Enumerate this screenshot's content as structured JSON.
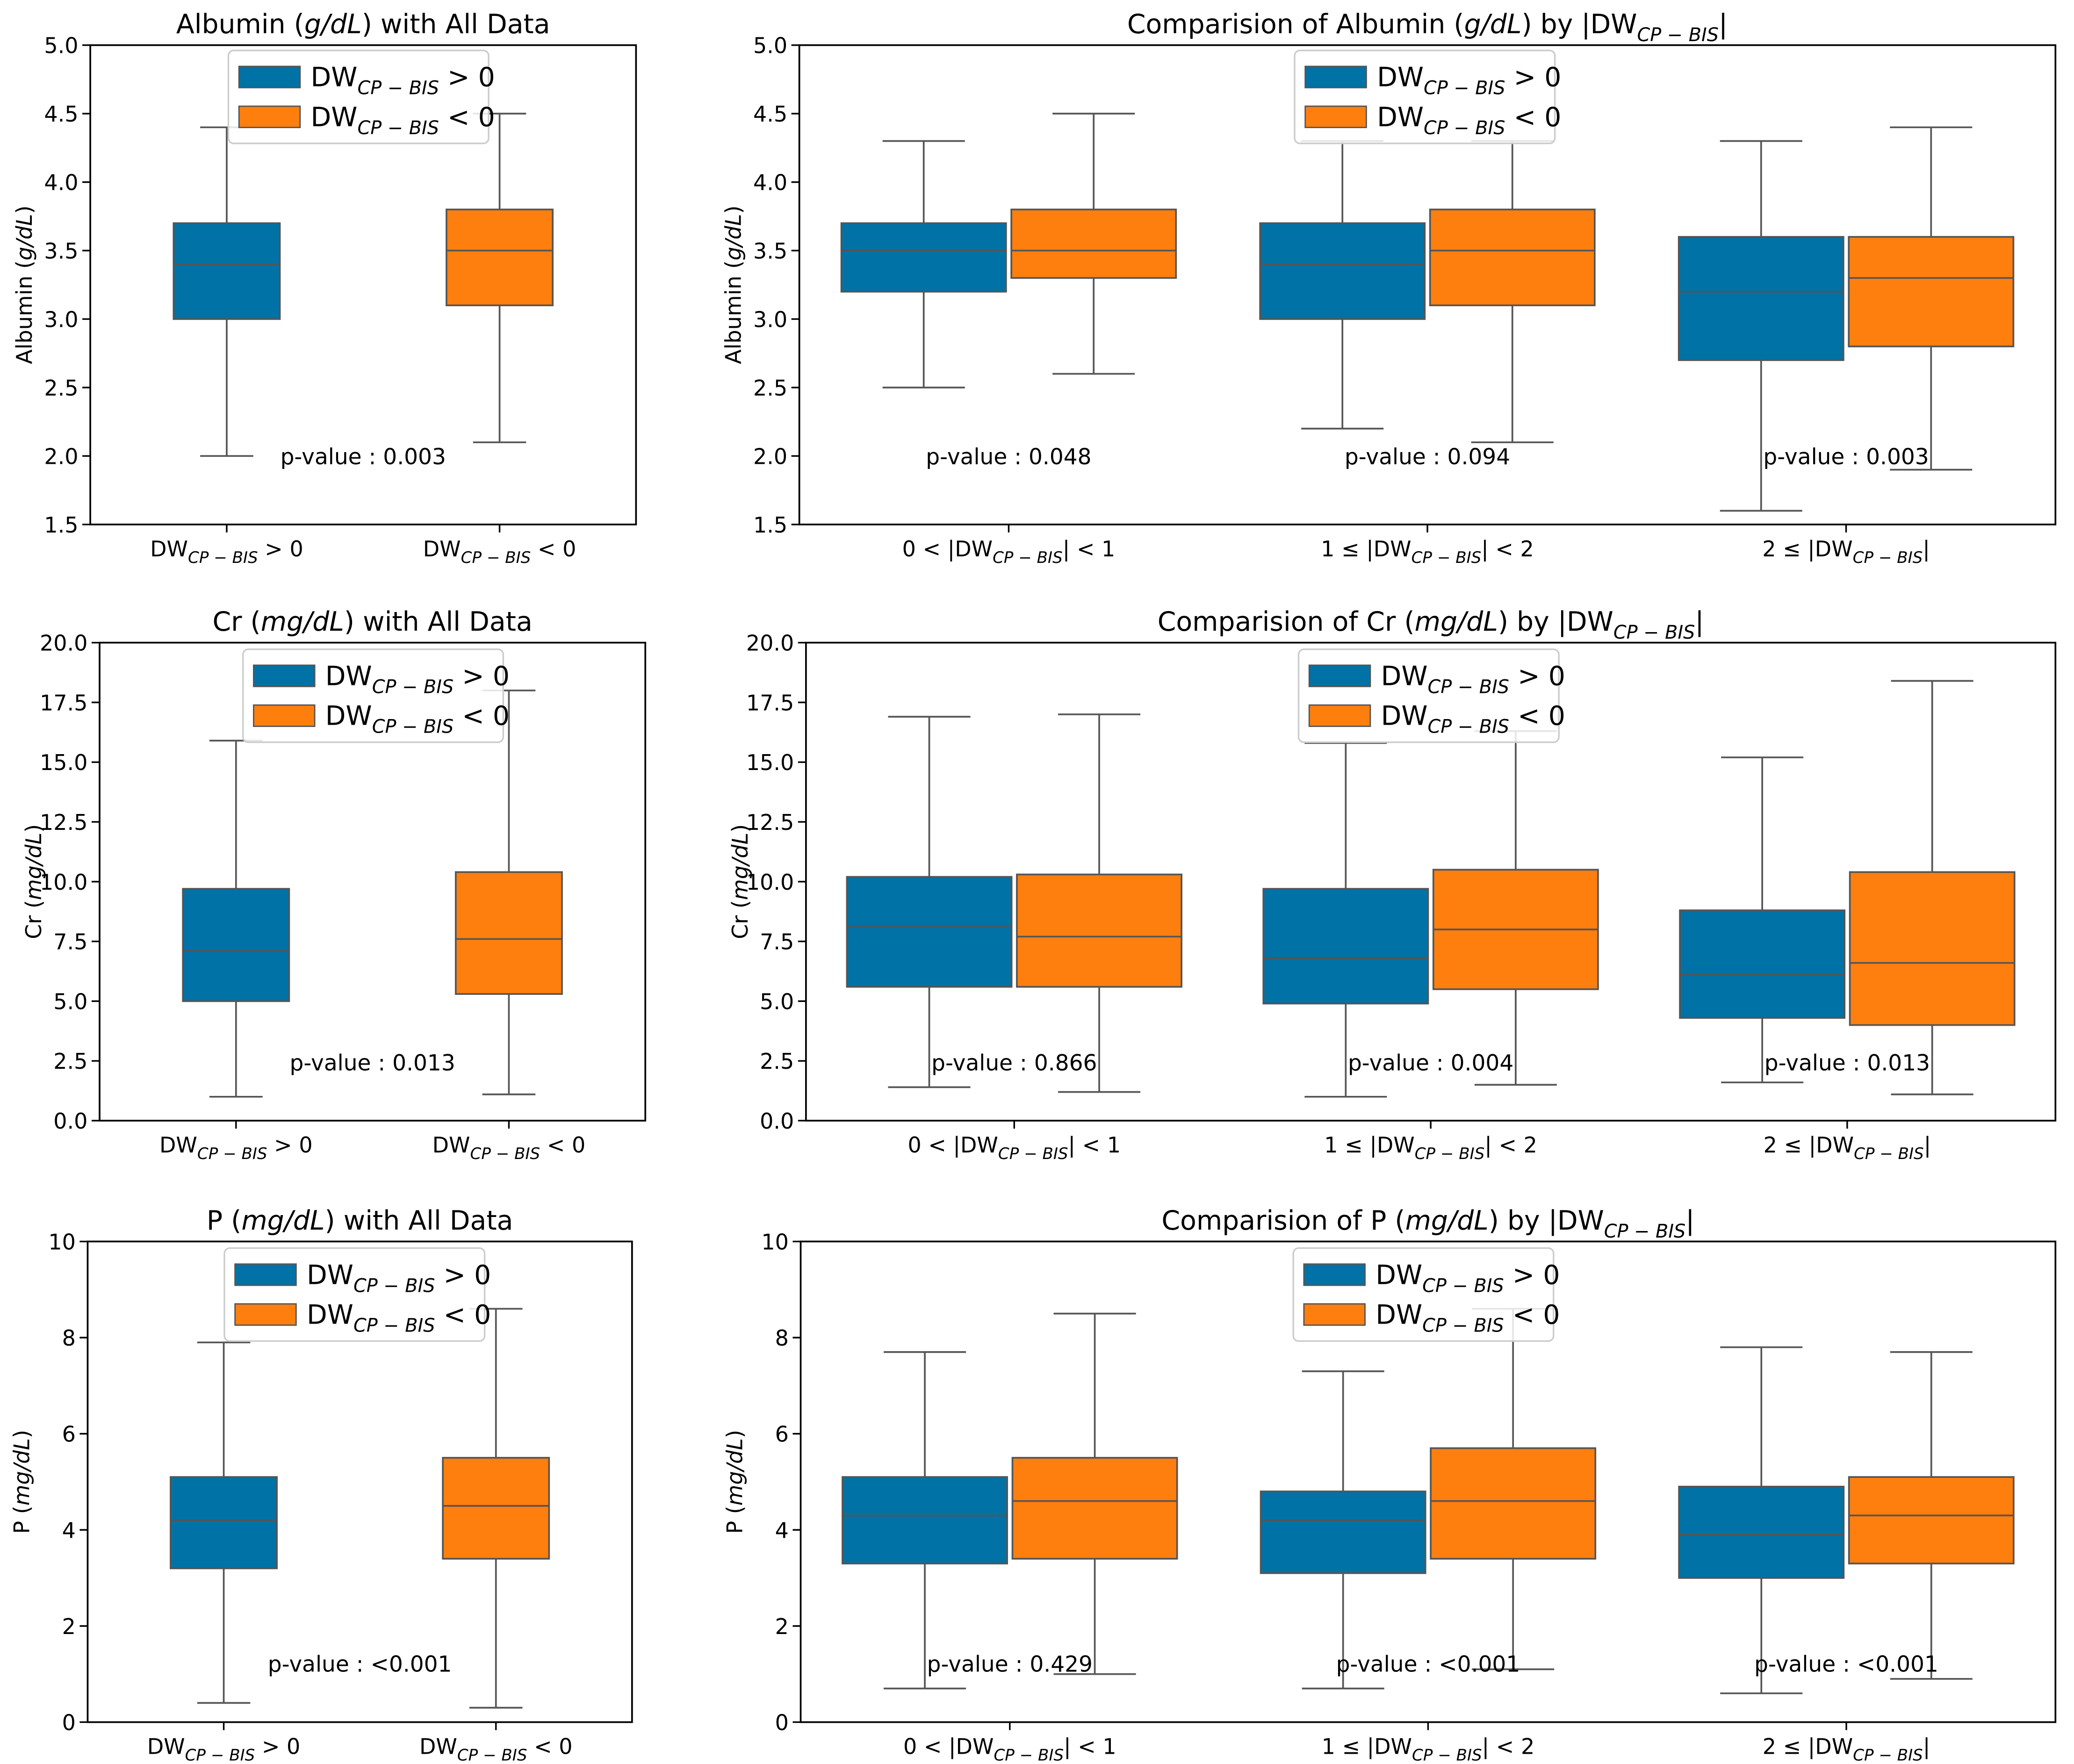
{
  "colors": {
    "positive": "#0072a6",
    "negative": "#ff7f0e",
    "line": "#555555"
  },
  "legend": {
    "positive": {
      "base": "DW",
      "sub": "CP − BIS",
      "rel": " > 0"
    },
    "negative": {
      "base": "DW",
      "sub": "CP − BIS",
      "rel": " < 0"
    }
  },
  "chart_data": [
    {
      "type": "box",
      "title": {
        "pre": "Albumin (",
        "italic": "g/dL",
        "post": ") with All Data"
      },
      "ylabel": {
        "pre": "Albumin (",
        "italic": "g/dL",
        "post": ")"
      },
      "ylim": [
        1.5,
        5.0
      ],
      "yticks": [
        "1.5",
        "2.0",
        "2.5",
        "3.0",
        "3.5",
        "4.0",
        "4.5",
        "5.0"
      ],
      "categories": [
        {
          "base": "DW",
          "sub": "CP − BIS",
          "post": " > 0"
        },
        {
          "base": "DW",
          "sub": "CP − BIS",
          "post": " < 0"
        }
      ],
      "groups": [
        {
          "boxes": [
            {
              "series": "positive",
              "min": 2.0,
              "q1": 3.0,
              "median": 3.4,
              "q3": 3.7,
              "max": 4.4
            }
          ]
        },
        {
          "boxes": [
            {
              "series": "negative",
              "min": 2.1,
              "q1": 3.1,
              "median": 3.5,
              "q3": 3.8,
              "max": 4.5
            }
          ]
        }
      ],
      "annotations": [
        {
          "text": "p-value : 0.003",
          "x": 0.5,
          "y": 1.94
        }
      ]
    },
    {
      "type": "box",
      "title": {
        "pre": "Comparision of Albumin (",
        "italic": "g/dL",
        "post": ") by |DW",
        "sub": "CP − BIS",
        "tail": "|"
      },
      "ylabel": {
        "pre": "Albumin (",
        "italic": "g/dL",
        "post": ")"
      },
      "ylim": [
        1.5,
        5.0
      ],
      "yticks": [
        "1.5",
        "2.0",
        "2.5",
        "3.0",
        "3.5",
        "4.0",
        "4.5",
        "5.0"
      ],
      "categories": [
        {
          "pre": "0 < |",
          "base": "DW",
          "sub": "CP − BIS",
          "post": "| < 1"
        },
        {
          "pre": "1 ≤ |",
          "base": "DW",
          "sub": "CP − BIS",
          "post": "| < 2"
        },
        {
          "pre": "2 ≤ |",
          "base": "DW",
          "sub": "CP − BIS",
          "post": "|"
        }
      ],
      "groups": [
        {
          "boxes": [
            {
              "series": "positive",
              "min": 2.5,
              "q1": 3.2,
              "median": 3.5,
              "q3": 3.7,
              "max": 4.3
            },
            {
              "series": "negative",
              "min": 2.6,
              "q1": 3.3,
              "median": 3.5,
              "q3": 3.8,
              "max": 4.5
            }
          ]
        },
        {
          "boxes": [
            {
              "series": "positive",
              "min": 2.2,
              "q1": 3.0,
              "median": 3.4,
              "q3": 3.7,
              "max": 4.3
            },
            {
              "series": "negative",
              "min": 2.1,
              "q1": 3.1,
              "median": 3.5,
              "q3": 3.8,
              "max": 4.3
            }
          ]
        },
        {
          "boxes": [
            {
              "series": "positive",
              "min": 1.6,
              "q1": 2.7,
              "median": 3.2,
              "q3": 3.6,
              "max": 4.3
            },
            {
              "series": "negative",
              "min": 1.9,
              "q1": 2.8,
              "median": 3.3,
              "q3": 3.6,
              "max": 4.4
            }
          ]
        }
      ],
      "annotations": [
        {
          "text": "p-value : 0.048",
          "x": 0.0,
          "y": 1.94
        },
        {
          "text": "p-value : 0.094",
          "x": 1.0,
          "y": 1.94
        },
        {
          "text": "p-value : 0.003",
          "x": 2.0,
          "y": 1.94
        }
      ]
    },
    {
      "type": "box",
      "title": {
        "pre": "Cr (",
        "italic": "mg/dL",
        "post": ") with All Data"
      },
      "ylabel": {
        "pre": "Cr (",
        "italic": "mg/dL",
        "post": ")"
      },
      "ylim": [
        0,
        20
      ],
      "yticks": [
        "0.0",
        "2.5",
        "5.0",
        "7.5",
        "10.0",
        "12.5",
        "15.0",
        "17.5",
        "20.0"
      ],
      "categories": [
        {
          "base": "DW",
          "sub": "CP − BIS",
          "post": " > 0"
        },
        {
          "base": "DW",
          "sub": "CP − BIS",
          "post": " < 0"
        }
      ],
      "groups": [
        {
          "boxes": [
            {
              "series": "positive",
              "min": 1.0,
              "q1": 5.0,
              "median": 7.1,
              "q3": 9.7,
              "max": 15.9
            }
          ]
        },
        {
          "boxes": [
            {
              "series": "negative",
              "min": 1.1,
              "q1": 5.3,
              "median": 7.6,
              "q3": 10.4,
              "max": 18.0
            }
          ]
        }
      ],
      "annotations": [
        {
          "text": "p-value : 0.013",
          "x": 0.5,
          "y": 2.1
        }
      ]
    },
    {
      "type": "box",
      "title": {
        "pre": "Comparision of Cr (",
        "italic": "mg/dL",
        "post": ") by |DW",
        "sub": "CP − BIS",
        "tail": "|"
      },
      "ylabel": {
        "pre": "Cr (",
        "italic": "mg/dL",
        "post": ")"
      },
      "ylim": [
        0,
        20
      ],
      "yticks": [
        "0.0",
        "2.5",
        "5.0",
        "7.5",
        "10.0",
        "12.5",
        "15.0",
        "17.5",
        "20.0"
      ],
      "categories": [
        {
          "pre": "0 < |",
          "base": "DW",
          "sub": "CP − BIS",
          "post": "| < 1"
        },
        {
          "pre": "1 ≤ |",
          "base": "DW",
          "sub": "CP − BIS",
          "post": "| < 2"
        },
        {
          "pre": "2 ≤ |",
          "base": "DW",
          "sub": "CP − BIS",
          "post": "|"
        }
      ],
      "groups": [
        {
          "boxes": [
            {
              "series": "positive",
              "min": 1.4,
              "q1": 5.6,
              "median": 8.1,
              "q3": 10.2,
              "max": 16.9
            },
            {
              "series": "negative",
              "min": 1.2,
              "q1": 5.6,
              "median": 7.7,
              "q3": 10.3,
              "max": 17.0
            }
          ]
        },
        {
          "boxes": [
            {
              "series": "positive",
              "min": 1.0,
              "q1": 4.9,
              "median": 6.8,
              "q3": 9.7,
              "max": 15.8
            },
            {
              "series": "negative",
              "min": 1.5,
              "q1": 5.5,
              "median": 8.0,
              "q3": 10.5,
              "max": 16.3
            }
          ]
        },
        {
          "boxes": [
            {
              "series": "positive",
              "min": 1.6,
              "q1": 4.3,
              "median": 6.1,
              "q3": 8.8,
              "max": 15.2
            },
            {
              "series": "negative",
              "min": 1.1,
              "q1": 4.0,
              "median": 6.6,
              "q3": 10.4,
              "max": 18.4
            }
          ]
        }
      ],
      "annotations": [
        {
          "text": "p-value : 0.866",
          "x": 0.0,
          "y": 2.1
        },
        {
          "text": "p-value : 0.004",
          "x": 1.0,
          "y": 2.1
        },
        {
          "text": "p-value : 0.013",
          "x": 2.0,
          "y": 2.1
        }
      ]
    },
    {
      "type": "box",
      "title": {
        "pre": "P (",
        "italic": "mg/dL",
        "post": ") with All Data"
      },
      "ylabel": {
        "pre": "P (",
        "italic": "mg/dL",
        "post": ")"
      },
      "ylim": [
        0,
        10
      ],
      "yticks": [
        "0",
        "2",
        "4",
        "6",
        "8",
        "10"
      ],
      "categories": [
        {
          "base": "DW",
          "sub": "CP − BIS",
          "post": " > 0"
        },
        {
          "base": "DW",
          "sub": "CP − BIS",
          "post": " < 0"
        }
      ],
      "groups": [
        {
          "boxes": [
            {
              "series": "positive",
              "min": 0.4,
              "q1": 3.2,
              "median": 4.2,
              "q3": 5.1,
              "max": 7.9
            }
          ]
        },
        {
          "boxes": [
            {
              "series": "negative",
              "min": 0.3,
              "q1": 3.4,
              "median": 4.5,
              "q3": 5.5,
              "max": 8.6
            }
          ]
        }
      ],
      "annotations": [
        {
          "text": "p-value : <0.001",
          "x": 0.5,
          "y": 1.05
        }
      ]
    },
    {
      "type": "box",
      "title": {
        "pre": "Comparision of P (",
        "italic": "mg/dL",
        "post": ") by |DW",
        "sub": "CP − BIS",
        "tail": "|"
      },
      "ylabel": {
        "pre": "P (",
        "italic": "mg/dL",
        "post": ")"
      },
      "ylim": [
        0,
        10
      ],
      "yticks": [
        "0",
        "2",
        "4",
        "6",
        "8",
        "10"
      ],
      "categories": [
        {
          "pre": "0 < |",
          "base": "DW",
          "sub": "CP − BIS",
          "post": "| < 1"
        },
        {
          "pre": "1 ≤ |",
          "base": "DW",
          "sub": "CP − BIS",
          "post": "| < 2"
        },
        {
          "pre": "2 ≤ |",
          "base": "DW",
          "sub": "CP − BIS",
          "post": "|"
        }
      ],
      "groups": [
        {
          "boxes": [
            {
              "series": "positive",
              "min": 0.7,
              "q1": 3.3,
              "median": 4.3,
              "q3": 5.1,
              "max": 7.7
            },
            {
              "series": "negative",
              "min": 1.0,
              "q1": 3.4,
              "median": 4.6,
              "q3": 5.5,
              "max": 8.5
            }
          ]
        },
        {
          "boxes": [
            {
              "series": "positive",
              "min": 0.7,
              "q1": 3.1,
              "median": 4.2,
              "q3": 4.8,
              "max": 7.3
            },
            {
              "series": "negative",
              "min": 1.1,
              "q1": 3.4,
              "median": 4.6,
              "q3": 5.7,
              "max": 8.6
            }
          ]
        },
        {
          "boxes": [
            {
              "series": "positive",
              "min": 0.6,
              "q1": 3.0,
              "median": 3.9,
              "q3": 4.9,
              "max": 7.8
            },
            {
              "series": "negative",
              "min": 0.9,
              "q1": 3.3,
              "median": 4.3,
              "q3": 5.1,
              "max": 7.7
            }
          ]
        }
      ],
      "annotations": [
        {
          "text": "p-value : 0.429",
          "x": 0.0,
          "y": 1.05
        },
        {
          "text": "p-value : <0.001",
          "x": 1.0,
          "y": 1.05
        },
        {
          "text": "p-value : <0.001",
          "x": 2.0,
          "y": 1.05
        }
      ]
    }
  ]
}
